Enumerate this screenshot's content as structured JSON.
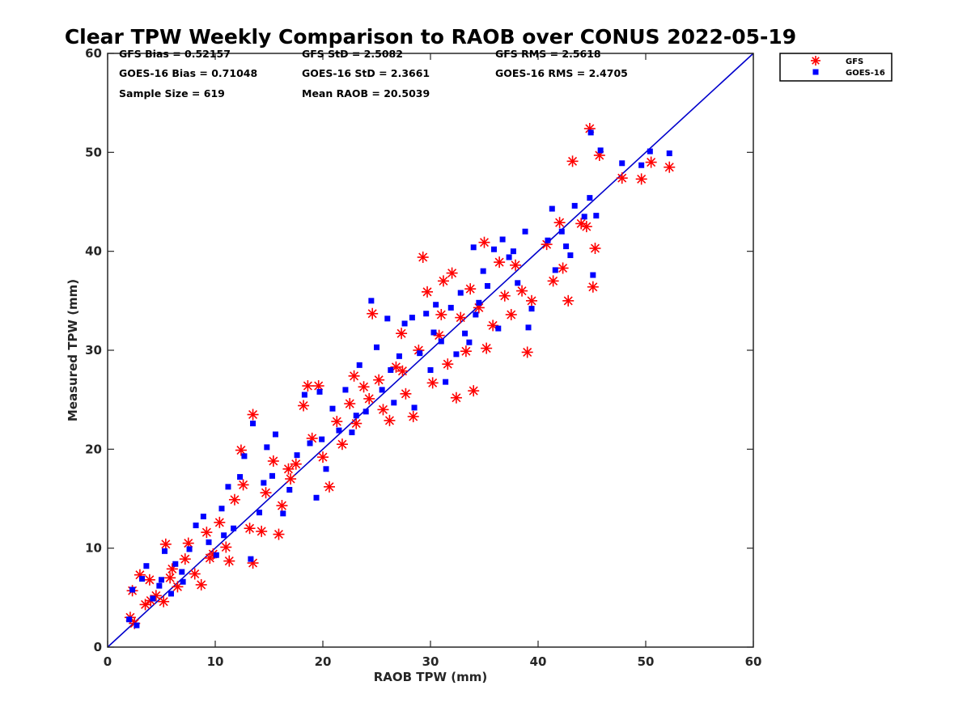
{
  "stats": {
    "gfs_bias": "GFS Bias = 0.52157",
    "goes_bias": "GOES-16 Bias = 0.71048",
    "sample_size": "Sample Size = 619",
    "gfs_std": "GFS StD = 2.5082",
    "goes_std": "GOES-16 StD = 2.3661",
    "mean_raob": "Mean RAOB = 20.5039",
    "gfs_rms": "GFS RMS = 2.5618",
    "goes_rms": "GOES-16 RMS = 2.4705"
  },
  "colors": {
    "gfs": "#ff0000",
    "goes": "#0000ff",
    "one_to_one": "#0000cc",
    "axis": "#262626"
  },
  "chart_data": {
    "type": "scatter",
    "title": "Clear TPW Weekly Comparison to RAOB over CONUS 2022-05-19",
    "xlabel": "RAOB TPW (mm)",
    "ylabel": "Measured TPW (mm)",
    "xlim": [
      0,
      60
    ],
    "ylim": [
      0,
      60
    ],
    "xticks": [
      "0",
      "10",
      "20",
      "30",
      "40",
      "50",
      "60"
    ],
    "yticks": [
      "0",
      "10",
      "20",
      "30",
      "40",
      "50",
      "60"
    ],
    "grid": false,
    "legend_position": "outside top-right",
    "reference_line": {
      "from": [
        0,
        0
      ],
      "to": [
        60,
        60
      ]
    },
    "series": [
      {
        "name": "GFS",
        "marker": "asterisk",
        "points": [
          [
            2.1,
            3.0
          ],
          [
            2.5,
            2.4
          ],
          [
            2.3,
            5.7
          ],
          [
            3.0,
            7.3
          ],
          [
            3.5,
            4.3
          ],
          [
            3.9,
            6.8
          ],
          [
            4.5,
            5.2
          ],
          [
            5.2,
            4.6
          ],
          [
            5.4,
            10.4
          ],
          [
            5.8,
            7.0
          ],
          [
            6.5,
            6.1
          ],
          [
            7.2,
            8.9
          ],
          [
            7.5,
            10.5
          ],
          [
            8.1,
            7.4
          ],
          [
            8.7,
            6.3
          ],
          [
            9.2,
            11.6
          ],
          [
            9.8,
            9.4
          ],
          [
            10.4,
            12.6
          ],
          [
            11.0,
            10.1
          ],
          [
            11.3,
            8.7
          ],
          [
            11.8,
            14.9
          ],
          [
            12.4,
            19.9
          ],
          [
            12.6,
            16.4
          ],
          [
            13.2,
            12.0
          ],
          [
            13.5,
            8.5
          ],
          [
            13.5,
            23.5
          ],
          [
            14.3,
            11.7
          ],
          [
            14.7,
            15.6
          ],
          [
            15.4,
            18.8
          ],
          [
            15.9,
            11.4
          ],
          [
            16.2,
            14.3
          ],
          [
            17.0,
            17.0
          ],
          [
            17.5,
            18.5
          ],
          [
            18.2,
            24.4
          ],
          [
            18.6,
            26.4
          ],
          [
            19.0,
            21.1
          ],
          [
            19.6,
            26.4
          ],
          [
            20.0,
            19.2
          ],
          [
            20.6,
            16.2
          ],
          [
            21.3,
            22.8
          ],
          [
            21.8,
            20.5
          ],
          [
            22.5,
            24.6
          ],
          [
            23.1,
            22.6
          ],
          [
            23.8,
            26.3
          ],
          [
            24.3,
            25.1
          ],
          [
            24.6,
            33.7
          ],
          [
            25.2,
            27.0
          ],
          [
            25.6,
            24.0
          ],
          [
            26.2,
            22.9
          ],
          [
            26.8,
            28.3
          ],
          [
            27.3,
            31.7
          ],
          [
            27.7,
            25.6
          ],
          [
            28.4,
            23.3
          ],
          [
            28.9,
            30.0
          ],
          [
            29.3,
            39.4
          ],
          [
            29.7,
            35.9
          ],
          [
            30.2,
            26.7
          ],
          [
            30.8,
            31.5
          ],
          [
            31.2,
            37.0
          ],
          [
            31.6,
            28.6
          ],
          [
            32.0,
            37.8
          ],
          [
            32.4,
            25.2
          ],
          [
            32.8,
            33.3
          ],
          [
            33.3,
            29.9
          ],
          [
            33.7,
            36.2
          ],
          [
            34.0,
            25.9
          ],
          [
            34.5,
            34.3
          ],
          [
            35.0,
            40.9
          ],
          [
            35.2,
            30.2
          ],
          [
            35.8,
            32.5
          ],
          [
            36.4,
            38.9
          ],
          [
            36.9,
            35.5
          ],
          [
            37.5,
            33.6
          ],
          [
            37.9,
            38.6
          ],
          [
            38.5,
            36.0
          ],
          [
            39.0,
            29.8
          ],
          [
            39.4,
            35.0
          ],
          [
            40.8,
            40.7
          ],
          [
            41.4,
            37.0
          ],
          [
            42.0,
            42.9
          ],
          [
            42.3,
            38.3
          ],
          [
            42.8,
            35.0
          ],
          [
            43.2,
            49.1
          ],
          [
            44.0,
            42.8
          ],
          [
            44.5,
            42.5
          ],
          [
            44.8,
            52.4
          ],
          [
            45.1,
            36.4
          ],
          [
            45.3,
            40.3
          ],
          [
            45.7,
            49.7
          ],
          [
            47.8,
            47.4
          ],
          [
            49.6,
            47.3
          ],
          [
            50.5,
            49.0
          ],
          [
            52.2,
            48.5
          ],
          [
            4.0,
            4.7
          ],
          [
            6.0,
            7.9
          ],
          [
            9.5,
            9.0
          ],
          [
            16.8,
            18.0
          ],
          [
            22.9,
            27.4
          ],
          [
            27.4,
            27.9
          ],
          [
            31.0,
            33.6
          ]
        ]
      },
      {
        "name": "GOES-16",
        "marker": "square",
        "points": [
          [
            2.0,
            2.8
          ],
          [
            2.3,
            5.8
          ],
          [
            2.7,
            2.2
          ],
          [
            3.2,
            6.9
          ],
          [
            3.6,
            8.2
          ],
          [
            4.2,
            4.9
          ],
          [
            4.8,
            6.2
          ],
          [
            5.3,
            9.7
          ],
          [
            5.9,
            5.4
          ],
          [
            6.3,
            8.4
          ],
          [
            6.9,
            7.6
          ],
          [
            7.6,
            9.9
          ],
          [
            8.2,
            12.3
          ],
          [
            8.9,
            13.2
          ],
          [
            9.4,
            10.6
          ],
          [
            10.1,
            9.3
          ],
          [
            10.6,
            14.0
          ],
          [
            11.2,
            16.2
          ],
          [
            11.7,
            12.0
          ],
          [
            12.3,
            17.2
          ],
          [
            12.7,
            19.3
          ],
          [
            13.3,
            8.9
          ],
          [
            13.5,
            22.6
          ],
          [
            14.1,
            13.6
          ],
          [
            14.8,
            20.2
          ],
          [
            15.3,
            17.3
          ],
          [
            15.6,
            21.5
          ],
          [
            16.3,
            13.5
          ],
          [
            16.9,
            15.9
          ],
          [
            17.6,
            19.4
          ],
          [
            18.3,
            25.5
          ],
          [
            18.8,
            20.6
          ],
          [
            19.4,
            15.1
          ],
          [
            19.7,
            25.8
          ],
          [
            20.3,
            18.0
          ],
          [
            20.9,
            24.1
          ],
          [
            21.5,
            21.9
          ],
          [
            22.1,
            26.0
          ],
          [
            22.7,
            21.7
          ],
          [
            23.4,
            28.5
          ],
          [
            24.0,
            23.8
          ],
          [
            24.5,
            35.0
          ],
          [
            25.0,
            30.3
          ],
          [
            25.5,
            26.0
          ],
          [
            26.0,
            33.2
          ],
          [
            26.6,
            24.7
          ],
          [
            27.1,
            29.4
          ],
          [
            27.6,
            32.7
          ],
          [
            28.3,
            33.3
          ],
          [
            28.5,
            24.2
          ],
          [
            29.0,
            29.7
          ],
          [
            29.6,
            33.7
          ],
          [
            30.0,
            28.0
          ],
          [
            30.5,
            34.6
          ],
          [
            31.0,
            30.9
          ],
          [
            31.4,
            26.8
          ],
          [
            31.9,
            34.3
          ],
          [
            32.4,
            29.6
          ],
          [
            32.8,
            35.8
          ],
          [
            33.2,
            31.7
          ],
          [
            33.6,
            30.8
          ],
          [
            34.0,
            40.4
          ],
          [
            34.5,
            34.8
          ],
          [
            34.9,
            38.0
          ],
          [
            35.3,
            36.5
          ],
          [
            35.9,
            40.2
          ],
          [
            36.3,
            32.2
          ],
          [
            36.7,
            41.2
          ],
          [
            37.3,
            39.4
          ],
          [
            38.1,
            36.8
          ],
          [
            38.8,
            42.0
          ],
          [
            39.1,
            32.3
          ],
          [
            39.4,
            34.2
          ],
          [
            40.9,
            41.1
          ],
          [
            41.3,
            44.3
          ],
          [
            41.6,
            38.1
          ],
          [
            42.2,
            42.0
          ],
          [
            42.6,
            40.5
          ],
          [
            43.0,
            39.6
          ],
          [
            43.4,
            44.6
          ],
          [
            44.3,
            43.5
          ],
          [
            44.9,
            52.0
          ],
          [
            45.1,
            37.6
          ],
          [
            45.4,
            43.6
          ],
          [
            45.8,
            50.2
          ],
          [
            47.8,
            48.9
          ],
          [
            49.6,
            48.7
          ],
          [
            50.4,
            50.1
          ],
          [
            52.2,
            49.9
          ],
          [
            44.8,
            45.4
          ],
          [
            5.0,
            6.8
          ],
          [
            7.0,
            6.6
          ],
          [
            10.8,
            11.3
          ],
          [
            14.5,
            16.6
          ],
          [
            19.9,
            21.0
          ],
          [
            23.1,
            23.4
          ],
          [
            26.3,
            28.0
          ],
          [
            30.3,
            31.8
          ],
          [
            34.2,
            33.6
          ],
          [
            37.7,
            40.0
          ]
        ]
      }
    ]
  }
}
